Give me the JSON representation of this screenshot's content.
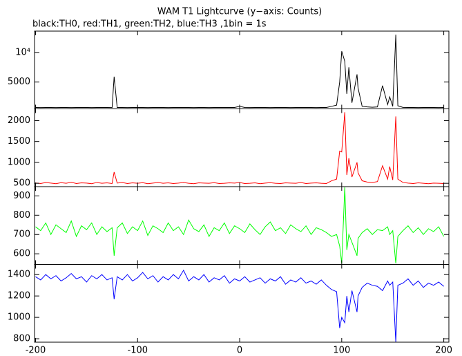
{
  "chart_data": [
    {
      "type": "line",
      "title": "WAM T1 Lightcurve (y−axis: Counts)",
      "subtitle": "black:TH0, red:TH1, green:TH2, blue:TH3 ,1bin = 1s",
      "color": "#000000",
      "x": [
        -200,
        -195,
        -190,
        -185,
        -180,
        -175,
        -170,
        -165,
        -160,
        -155,
        -150,
        -145,
        -140,
        -135,
        -130,
        -125,
        -123,
        -120,
        -115,
        -110,
        -105,
        -100,
        -95,
        -90,
        -85,
        -80,
        -75,
        -70,
        -65,
        -60,
        -55,
        -50,
        -45,
        -40,
        -35,
        -30,
        -25,
        -20,
        -15,
        -10,
        -5,
        0,
        5,
        10,
        15,
        20,
        25,
        30,
        35,
        40,
        45,
        50,
        55,
        60,
        65,
        70,
        75,
        80,
        85,
        90,
        95,
        98,
        100,
        103,
        105,
        107,
        110,
        115,
        116,
        120,
        125,
        130,
        135,
        140,
        145,
        147,
        150,
        153,
        155,
        160,
        165,
        170,
        175,
        180,
        185,
        190,
        195,
        200
      ],
      "values": [
        700,
        690,
        710,
        700,
        695,
        705,
        700,
        690,
        700,
        710,
        700,
        695,
        700,
        705,
        700,
        690,
        5900,
        700,
        705,
        695,
        700,
        710,
        700,
        690,
        700,
        705,
        700,
        695,
        700,
        710,
        700,
        700,
        695,
        705,
        700,
        690,
        700,
        700,
        705,
        700,
        700,
        900,
        700,
        695,
        700,
        710,
        700,
        690,
        700,
        705,
        700,
        695,
        700,
        710,
        700,
        700,
        690,
        705,
        700,
        900,
        1100,
        5000,
        10200,
        8500,
        3000,
        7500,
        1500,
        6300,
        4000,
        900,
        800,
        750,
        800,
        4400,
        1200,
        2500,
        900,
        13000,
        1000,
        720,
        700,
        710,
        690,
        700,
        705,
        700,
        695,
        700
      ],
      "xlim": [
        -201,
        205
      ],
      "ylim": [
        470,
        13600
      ],
      "yticks": [
        5000,
        {
          "value": 10000,
          "label": "10⁴"
        }
      ]
    },
    {
      "type": "line",
      "color": "#ff0000",
      "x": [
        -200,
        -195,
        -190,
        -185,
        -180,
        -175,
        -170,
        -165,
        -160,
        -155,
        -150,
        -145,
        -140,
        -135,
        -130,
        -125,
        -123,
        -120,
        -115,
        -110,
        -105,
        -100,
        -95,
        -90,
        -85,
        -80,
        -75,
        -70,
        -65,
        -60,
        -55,
        -50,
        -45,
        -40,
        -35,
        -30,
        -25,
        -20,
        -15,
        -10,
        -5,
        0,
        5,
        10,
        15,
        20,
        25,
        30,
        35,
        40,
        45,
        50,
        55,
        60,
        65,
        70,
        75,
        80,
        85,
        90,
        95,
        98,
        100,
        103,
        105,
        107,
        110,
        115,
        116,
        120,
        125,
        130,
        135,
        140,
        145,
        147,
        150,
        153,
        155,
        160,
        165,
        170,
        175,
        180,
        185,
        190,
        195,
        200
      ],
      "values": [
        510,
        495,
        520,
        505,
        490,
        515,
        500,
        525,
        495,
        510,
        505,
        490,
        520,
        500,
        510,
        495,
        770,
        505,
        520,
        495,
        510,
        500,
        515,
        490,
        505,
        520,
        500,
        510,
        495,
        505,
        520,
        500,
        490,
        510,
        505,
        500,
        515,
        495,
        500,
        510,
        505,
        520,
        495,
        500,
        510,
        490,
        505,
        515,
        500,
        495,
        510,
        505,
        500,
        520,
        495,
        505,
        510,
        500,
        495,
        560,
        600,
        1270,
        1250,
        2200,
        700,
        1100,
        650,
        1000,
        750,
        560,
        530,
        520,
        540,
        920,
        600,
        900,
        580,
        2100,
        600,
        520,
        505,
        495,
        510,
        500,
        490,
        505,
        500,
        495
      ],
      "xlim": [
        -201,
        205
      ],
      "ylim": [
        420,
        2280
      ],
      "yticks": [
        500,
        1000,
        1500,
        2000
      ]
    },
    {
      "type": "line",
      "color": "#00ff00",
      "x": [
        -200,
        -195,
        -190,
        -185,
        -180,
        -175,
        -170,
        -165,
        -160,
        -155,
        -150,
        -145,
        -140,
        -135,
        -130,
        -125,
        -123,
        -120,
        -115,
        -110,
        -105,
        -100,
        -95,
        -90,
        -85,
        -80,
        -75,
        -70,
        -65,
        -60,
        -55,
        -50,
        -45,
        -40,
        -35,
        -30,
        -25,
        -20,
        -15,
        -10,
        -5,
        0,
        5,
        10,
        15,
        20,
        25,
        30,
        35,
        40,
        45,
        50,
        55,
        60,
        65,
        70,
        75,
        80,
        85,
        90,
        95,
        98,
        100,
        103,
        105,
        107,
        110,
        115,
        116,
        120,
        125,
        130,
        135,
        140,
        145,
        147,
        150,
        153,
        155,
        160,
        165,
        170,
        175,
        180,
        185,
        190,
        195,
        200
      ],
      "values": [
        740,
        720,
        760,
        700,
        750,
        730,
        710,
        770,
        690,
        745,
        725,
        760,
        700,
        740,
        715,
        735,
        590,
        735,
        760,
        705,
        740,
        720,
        770,
        695,
        745,
        730,
        710,
        760,
        720,
        740,
        700,
        775,
        730,
        715,
        750,
        690,
        735,
        720,
        760,
        705,
        745,
        730,
        710,
        755,
        725,
        700,
        740,
        765,
        720,
        735,
        705,
        750,
        730,
        715,
        745,
        700,
        735,
        725,
        710,
        690,
        700,
        640,
        550,
        945,
        620,
        700,
        660,
        590,
        680,
        710,
        730,
        700,
        725,
        720,
        740,
        700,
        720,
        550,
        690,
        720,
        745,
        710,
        735,
        700,
        730,
        715,
        740,
        690
      ],
      "xlim": [
        -201,
        205
      ],
      "ylim": [
        545,
        948
      ],
      "yticks": [
        600,
        700,
        800,
        900
      ]
    },
    {
      "type": "line",
      "color": "#0000ff",
      "x": [
        -200,
        -195,
        -190,
        -185,
        -180,
        -175,
        -170,
        -165,
        -160,
        -155,
        -150,
        -145,
        -140,
        -135,
        -130,
        -125,
        -123,
        -120,
        -115,
        -110,
        -105,
        -100,
        -95,
        -90,
        -85,
        -80,
        -75,
        -70,
        -65,
        -60,
        -55,
        -50,
        -45,
        -40,
        -35,
        -30,
        -25,
        -20,
        -15,
        -10,
        -5,
        0,
        5,
        10,
        15,
        20,
        25,
        30,
        35,
        40,
        45,
        50,
        55,
        60,
        65,
        70,
        75,
        80,
        85,
        90,
        95,
        98,
        100,
        103,
        105,
        107,
        110,
        115,
        116,
        120,
        125,
        130,
        135,
        140,
        145,
        147,
        150,
        153,
        155,
        160,
        165,
        170,
        175,
        180,
        185,
        190,
        195,
        200
      ],
      "values": [
        1380,
        1350,
        1400,
        1360,
        1390,
        1340,
        1370,
        1410,
        1360,
        1380,
        1330,
        1390,
        1360,
        1400,
        1350,
        1370,
        1170,
        1380,
        1350,
        1400,
        1340,
        1370,
        1420,
        1360,
        1390,
        1330,
        1380,
        1350,
        1400,
        1360,
        1440,
        1340,
        1380,
        1350,
        1400,
        1330,
        1370,
        1350,
        1390,
        1320,
        1360,
        1340,
        1380,
        1330,
        1350,
        1370,
        1320,
        1360,
        1340,
        1380,
        1310,
        1350,
        1330,
        1370,
        1320,
        1340,
        1310,
        1350,
        1300,
        1260,
        1240,
        900,
        1000,
        950,
        1200,
        1050,
        1250,
        1050,
        1200,
        1280,
        1320,
        1300,
        1290,
        1250,
        1340,
        1300,
        1330,
        770,
        1300,
        1320,
        1360,
        1300,
        1340,
        1280,
        1320,
        1300,
        1330,
        1290
      ],
      "xlim": [
        -201,
        205
      ],
      "ylim": [
        768,
        1495
      ],
      "yticks": [
        800,
        1000,
        1200,
        1400
      ],
      "xticks": [
        -200,
        -100,
        0,
        100,
        200
      ]
    }
  ]
}
